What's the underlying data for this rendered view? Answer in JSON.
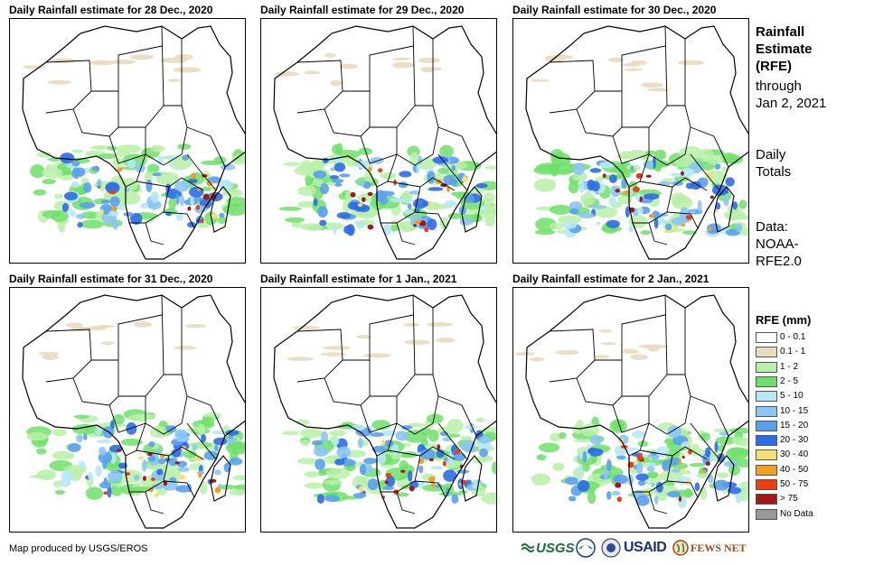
{
  "panels": [
    {
      "title": "Daily Rainfall estimate for 28 Dec., 2020"
    },
    {
      "title": "Daily Rainfall estimate for 29 Dec., 2020"
    },
    {
      "title": "Daily Rainfall estimate for 30 Dec., 2020"
    },
    {
      "title": "Daily Rainfall estimate for 31 Dec., 2020"
    },
    {
      "title": "Daily Rainfall estimate for 1 Jan., 2021"
    },
    {
      "title": "Daily Rainfall estimate for 2 Jan., 2021"
    }
  ],
  "side": {
    "title_line1": "Rainfall",
    "title_line2": "Estimate",
    "title_line3": "(RFE)",
    "through_line1": "through",
    "through_line2": "Jan 2, 2021",
    "totals_line1": "Daily",
    "totals_line2": "Totals",
    "data_line1": "Data:",
    "data_line2": "NOAA-",
    "data_line3": "RFE2.0"
  },
  "legend": {
    "title": "RFE (mm)",
    "items": [
      {
        "label": "0 - 0.1",
        "color": "#ffffff"
      },
      {
        "label": "0.1 - 1",
        "color": "#e8dcc0"
      },
      {
        "label": "1 - 2",
        "color": "#b8f0a8"
      },
      {
        "label": "2 - 5",
        "color": "#6ee06a"
      },
      {
        "label": "5 - 10",
        "color": "#b8e8f4"
      },
      {
        "label": "10 - 15",
        "color": "#8cc4f4"
      },
      {
        "label": "15 - 20",
        "color": "#5aa0f0"
      },
      {
        "label": "20 - 30",
        "color": "#2c6ce8"
      },
      {
        "label": "30 - 40",
        "color": "#f8e070"
      },
      {
        "label": "40 - 50",
        "color": "#f0a020"
      },
      {
        "label": "50 - 75",
        "color": "#f03c10"
      },
      {
        "label": "> 75",
        "color": "#a01818"
      },
      {
        "label": "No Data",
        "color": "#999999"
      }
    ]
  },
  "credit": "Map produced by USGS/EROS",
  "logos": {
    "usgs": "USGS",
    "usaid": "USAID",
    "fewsnet": "FEWS NET"
  }
}
